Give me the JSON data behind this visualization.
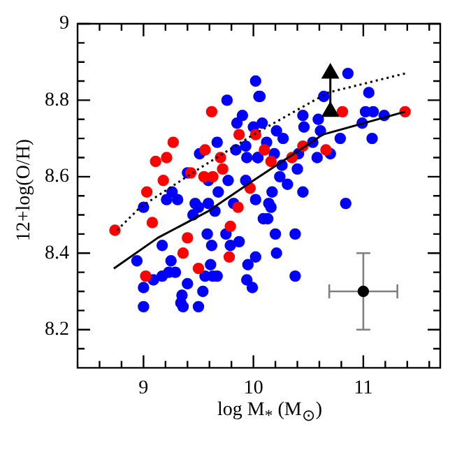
{
  "chart_data": {
    "type": "scatter",
    "xlabel": "log M$_{*}$ (M$_{⊙}$)",
    "ylabel": "12+log(O/H)",
    "xlim": [
      8.4,
      11.7
    ],
    "ylim": [
      8.1,
      9
    ],
    "xticks": [
      {
        "value": 8.6,
        "label": null
      },
      {
        "value": 8.8,
        "label": null
      },
      9,
      {
        "value": 9.2,
        "label": null
      },
      {
        "value": 9.4,
        "label": null
      },
      {
        "value": 9.6,
        "label": null
      },
      {
        "value": 9.8,
        "label": null
      },
      10,
      {
        "value": 10.2,
        "label": null
      },
      {
        "value": 10.4,
        "label": null
      },
      {
        "value": 10.6,
        "label": null
      },
      {
        "value": 10.8,
        "label": null
      },
      11,
      {
        "value": 11.2,
        "label": null
      },
      {
        "value": 11.4,
        "label": null
      },
      {
        "value": 11.6,
        "label": null
      }
    ],
    "yticks": [
      {
        "value": 8.15,
        "label": null
      },
      8.2,
      {
        "value": 8.25,
        "label": null
      },
      {
        "value": 8.3,
        "label": null
      },
      {
        "value": 8.35,
        "label": null
      },
      8.4,
      {
        "value": 8.45,
        "label": null
      },
      {
        "value": 8.5,
        "label": null
      },
      {
        "value": 8.55,
        "label": null
      },
      8.6,
      {
        "value": 8.65,
        "label": null
      },
      {
        "value": 8.7,
        "label": null
      },
      {
        "value": 8.75,
        "label": null
      },
      8.8,
      {
        "value": 8.85,
        "label": null
      },
      {
        "value": 8.9,
        "label": null
      },
      {
        "value": 8.95,
        "label": null
      },
      9
    ],
    "series": [
      {
        "color": "#0000ff",
        "marker": "circle",
        "x": [
          10.02,
          9.76,
          10.06,
          9.9,
          9.85,
          10.0,
          9.67,
          9.51,
          9.93,
          9.84,
          9.94,
          10.04,
          9.4,
          9.59,
          9.77,
          9.93,
          9.26,
          9.21,
          9.31,
          9.68,
          9.59,
          9.82,
          9.5,
          9.0,
          10.02,
          10.86,
          10.05,
          10.64,
          11.05,
          11.02,
          11.09,
          11.19,
          10.45,
          10.59,
          10.99,
          10.08,
          11.08,
          10.46,
          10.21,
          10.61,
          10.79,
          10.27,
          10.12,
          10.54,
          10.19,
          10.41,
          10.04,
          10.58,
          10.7,
          10.26,
          10.4,
          10.24,
          10.31,
          10.17,
          10.45,
          10.84,
          10.14,
          8.94,
          9.0,
          9.09,
          9.17,
          9.25,
          9.23,
          9.29,
          9.4,
          9.35,
          9.34,
          9.36,
          9.5,
          9.54,
          9.56,
          9.63,
          9.67,
          9.61,
          9.0,
          9.17,
          9.45,
          9.58,
          9.75,
          9.87,
          9.79,
          9.62,
          9.95,
          10.02,
          9.94,
          9.99,
          9.47,
          9.65,
          10.09,
          10.2,
          10.38,
          10.21,
          10.38,
          10.16,
          10.13
        ],
        "values": [
          8.85,
          8.8,
          8.81,
          8.76,
          8.74,
          8.73,
          8.69,
          8.66,
          8.68,
          8.67,
          8.65,
          8.65,
          8.61,
          8.59,
          8.59,
          8.59,
          8.56,
          8.54,
          8.54,
          8.56,
          8.53,
          8.53,
          8.52,
          8.52,
          8.54,
          8.87,
          8.81,
          8.81,
          8.82,
          8.77,
          8.77,
          8.76,
          8.76,
          8.75,
          8.74,
          8.74,
          8.7,
          8.73,
          8.72,
          8.72,
          8.7,
          8.7,
          8.69,
          8.69,
          8.66,
          8.66,
          8.65,
          8.65,
          8.66,
          8.63,
          8.62,
          8.6,
          8.58,
          8.56,
          8.56,
          8.53,
          8.53,
          8.38,
          8.31,
          8.33,
          8.34,
          8.38,
          8.35,
          8.35,
          8.32,
          8.29,
          8.27,
          8.26,
          8.26,
          8.3,
          8.34,
          8.34,
          8.34,
          8.37,
          8.26,
          8.42,
          8.5,
          8.45,
          8.45,
          8.43,
          8.42,
          8.42,
          8.37,
          8.39,
          8.33,
          8.31,
          8.53,
          8.51,
          8.49,
          8.45,
          8.45,
          8.4,
          8.34,
          8.52,
          8.49
        ]
      },
      {
        "color": "#ff0000",
        "marker": "circle",
        "x": [
          8.74,
          9.03,
          9.18,
          9.11,
          9.21,
          9.27,
          9.43,
          9.55,
          9.56,
          9.7,
          9.62,
          9.87,
          9.63,
          9.72,
          9.97,
          10.1,
          9.86,
          9.08,
          9.4,
          9.36,
          9.79,
          9.5,
          9.78,
          9.02,
          10.02,
          10.16,
          10.35,
          10.45,
          10.66,
          10.81,
          11.38
        ],
        "values": [
          8.46,
          8.56,
          8.59,
          8.64,
          8.65,
          8.69,
          8.61,
          8.6,
          8.67,
          8.65,
          8.77,
          8.71,
          8.6,
          8.62,
          8.57,
          8.67,
          8.52,
          8.48,
          8.44,
          8.4,
          8.47,
          8.36,
          8.39,
          8.34,
          8.71,
          8.64,
          8.65,
          8.68,
          8.67,
          8.77,
          8.77
        ]
      },
      {
        "type": "line",
        "color": "#000000",
        "marker": "none",
        "line_style": "solid",
        "x": [
          8.73,
          9.13,
          9.59,
          10.0,
          10.63,
          11.38
        ],
        "values": [
          8.36,
          8.44,
          8.51,
          8.59,
          8.71,
          8.77
        ]
      },
      {
        "type": "line",
        "color": "#000000",
        "marker": "none",
        "line_style": "dotted",
        "x": [
          8.76,
          8.97,
          9.5,
          10.0,
          10.68,
          11.38
        ],
        "values": [
          8.46,
          8.52,
          8.62,
          8.71,
          8.82,
          8.87
        ]
      },
      {
        "type": "line",
        "color": "#000000",
        "marker": "triangle",
        "line_style": "solid",
        "x": [
          10.7,
          10.7
        ],
        "values": [
          8.77,
          8.87
        ]
      },
      {
        "color": "#000000",
        "marker": "circle",
        "x": [
          11.0
        ],
        "values": [
          8.3
        ],
        "errors": [
          0.1
        ],
        "xerrors": [
          0.31
        ]
      }
    ]
  }
}
